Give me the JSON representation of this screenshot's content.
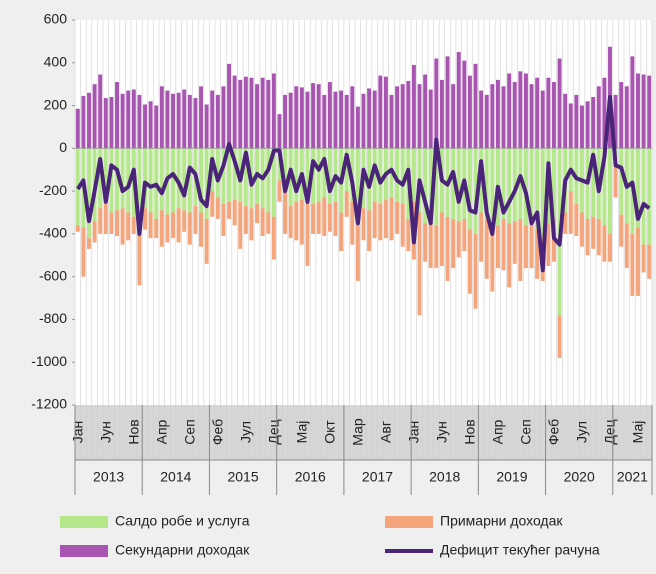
{
  "chart_data": {
    "type": "bar",
    "categories": [
      "Јан",
      null,
      null,
      null,
      null,
      "Јун",
      null,
      null,
      null,
      null,
      "Нов",
      null,
      null,
      null,
      null,
      "Апр",
      null,
      null,
      null,
      null,
      "Сеп",
      null,
      null,
      null,
      null,
      "Феб",
      null,
      null,
      null,
      null,
      "Јул",
      null,
      null,
      null,
      null,
      "Дец",
      null,
      null,
      null,
      null,
      "Мај",
      null,
      null,
      null,
      null,
      "Окт",
      null,
      null,
      null,
      null,
      "Мар",
      null,
      null,
      null,
      null,
      "Авг",
      null,
      null,
      null,
      null,
      "Јан",
      null,
      null,
      null,
      null,
      "Јун",
      null,
      null,
      null,
      null,
      "Нов",
      null,
      null,
      null,
      null,
      "Апр",
      null,
      null,
      null,
      null,
      "Сеп",
      null,
      null,
      null,
      null,
      "Феб",
      null,
      null,
      null,
      null,
      "Јул",
      null,
      null,
      null,
      null,
      "Дец",
      null,
      null,
      null,
      null,
      "Мај",
      null,
      null
    ],
    "years": [
      "2013",
      "2014",
      "2015",
      "2016",
      "2017",
      "2018",
      "2019",
      "2020",
      "2021"
    ],
    "series": [
      {
        "name": "Салдо робе и услуга",
        "color": "#b5e88a",
        "type": "bar",
        "stack": "neg",
        "values": [
          -360,
          -370,
          -420,
          -340,
          -280,
          -250,
          -300,
          -290,
          -280,
          -300,
          -320,
          -350,
          -280,
          -300,
          -330,
          -290,
          -310,
          -300,
          -280,
          -290,
          -300,
          -270,
          -300,
          -330,
          -200,
          -230,
          -260,
          -250,
          -240,
          -250,
          -270,
          -280,
          -260,
          -280,
          -300,
          -320,
          -150,
          -200,
          -270,
          -250,
          -240,
          -230,
          -260,
          -250,
          -230,
          -260,
          -250,
          -300,
          -200,
          -250,
          -300,
          -280,
          -290,
          -250,
          -260,
          -240,
          -230,
          -250,
          -260,
          -330,
          -250,
          -300,
          -350,
          -330,
          -360,
          -300,
          -320,
          -330,
          -340,
          -330,
          -380,
          -400,
          -300,
          -330,
          -350,
          -360,
          -330,
          -350,
          -340,
          -330,
          -360,
          -340,
          -380,
          -420,
          -350,
          -330,
          -780,
          -300,
          -200,
          -260,
          -300,
          -330,
          -320,
          -330,
          -360,
          -400,
          -80,
          -310,
          -350,
          -400,
          -370,
          -450,
          -450
        ]
      },
      {
        "name": "Примарни доходак",
        "color": "#f4a57c",
        "type": "bar",
        "stack": "neg",
        "values": [
          -30,
          -230,
          -50,
          -100,
          -120,
          -150,
          -100,
          -120,
          -170,
          -130,
          -80,
          -290,
          -100,
          -120,
          -90,
          -170,
          -130,
          -120,
          -160,
          -100,
          -150,
          -130,
          -160,
          -210,
          -120,
          -100,
          -150,
          -80,
          -120,
          -220,
          -130,
          -150,
          -90,
          -130,
          -100,
          -200,
          -100,
          -200,
          -150,
          -180,
          -210,
          -320,
          -140,
          -150,
          -180,
          -130,
          -160,
          -180,
          -120,
          -200,
          -320,
          -150,
          -190,
          -170,
          -170,
          -180,
          -200,
          -150,
          -200,
          -150,
          -270,
          -480,
          -180,
          -230,
          -200,
          -250,
          -300,
          -230,
          -170,
          -150,
          -300,
          -350,
          -230,
          -280,
          -320,
          -200,
          -240,
          -300,
          -200,
          -290,
          -200,
          -220,
          -230,
          -200,
          -200,
          -200,
          -200,
          -100,
          -200,
          -150,
          -160,
          -170,
          -150,
          -170,
          -170,
          -130,
          -150,
          -150,
          -210,
          -290,
          -320,
          -130,
          -160
        ]
      },
      {
        "name": "Секундарни доходак",
        "color": "#a855b2",
        "type": "bar",
        "stack": "pos",
        "values": [
          185,
          245,
          260,
          300,
          345,
          235,
          240,
          310,
          255,
          270,
          275,
          250,
          205,
          220,
          200,
          290,
          270,
          255,
          260,
          275,
          250,
          235,
          290,
          205,
          270,
          250,
          290,
          395,
          340,
          320,
          335,
          330,
          300,
          330,
          320,
          350,
          160,
          250,
          260,
          290,
          285,
          265,
          305,
          300,
          250,
          310,
          265,
          270,
          250,
          290,
          195,
          255,
          280,
          270,
          340,
          335,
          250,
          290,
          300,
          315,
          390,
          300,
          345,
          275,
          420,
          320,
          430,
          300,
          450,
          410,
          340,
          395,
          270,
          250,
          300,
          320,
          290,
          350,
          310,
          360,
          350,
          300,
          330,
          270,
          330,
          310,
          420,
          255,
          210,
          250,
          200,
          220,
          240,
          290,
          330,
          475,
          250,
          310,
          290,
          430,
          350,
          345,
          340
        ]
      },
      {
        "name": "Дефицит текућег рачуна",
        "color": "#4a2478",
        "type": "line",
        "values": [
          -190,
          -150,
          -340,
          -200,
          -50,
          -250,
          -80,
          -100,
          -200,
          -180,
          -100,
          -400,
          -160,
          -180,
          -170,
          -210,
          -140,
          -120,
          -160,
          -220,
          -90,
          -120,
          -240,
          -270,
          -50,
          -150,
          -80,
          20,
          -60,
          -150,
          -20,
          -170,
          -120,
          -140,
          -100,
          -10,
          -10,
          -200,
          -100,
          -200,
          -120,
          -250,
          -60,
          -100,
          -50,
          -200,
          -130,
          -160,
          -30,
          -160,
          -350,
          -100,
          -180,
          -80,
          -160,
          -120,
          -100,
          -150,
          -170,
          -100,
          -440,
          -150,
          -250,
          -350,
          40,
          -150,
          -170,
          -110,
          -250,
          -150,
          -290,
          -300,
          -60,
          -300,
          -400,
          -180,
          -300,
          -250,
          -200,
          -130,
          -210,
          -350,
          -300,
          -570,
          -70,
          -420,
          -450,
          -150,
          -100,
          -140,
          -150,
          -160,
          -30,
          -200,
          -40,
          240,
          -80,
          -90,
          -180,
          -160,
          -330,
          -260,
          -280
        ]
      }
    ],
    "ylim": [
      -1200,
      600
    ],
    "yticks": [
      -1200,
      -1000,
      -800,
      -600,
      -400,
      -200,
      0,
      200,
      400,
      600
    ],
    "grid": "x"
  }
}
